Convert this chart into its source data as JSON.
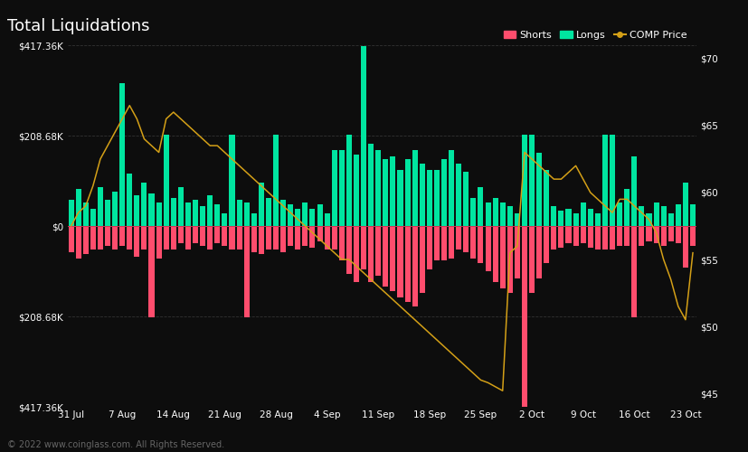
{
  "title": "Total Liquidations",
  "background_color": "#0d0d0d",
  "text_color": "#ffffff",
  "grid_color": "#333333",
  "shorts_color": "#ff4d6d",
  "longs_color": "#00e5a0",
  "price_color": "#d4a017",
  "footer": "© 2022 www.coinglass.com. All Rights Reserved.",
  "x_labels": [
    "31 Jul",
    "7 Aug",
    "14 Aug",
    "21 Aug",
    "28 Aug",
    "4 Sep",
    "11 Sep",
    "18 Sep",
    "25 Sep",
    "2 Oct",
    "9 Oct",
    "16 Oct",
    "23 Oct"
  ],
  "ylim_left": [
    -417360,
    417360
  ],
  "ylim_right": [
    44,
    71
  ],
  "yticks_left": [
    -417360,
    -208680,
    0,
    208680,
    417360
  ],
  "ytick_labels_left": [
    "$417.36K",
    "$208.68K",
    "$0",
    "$208.68K",
    "$417.36K"
  ],
  "yticks_right": [
    45,
    50,
    55,
    60,
    65,
    70
  ],
  "ytick_labels_right": [
    "$45",
    "$50",
    "$55",
    "$60",
    "$65",
    "$70"
  ],
  "n_bars": 86,
  "longs": [
    60000,
    85000,
    55000,
    40000,
    90000,
    60000,
    80000,
    330000,
    120000,
    70000,
    100000,
    75000,
    55000,
    210000,
    65000,
    90000,
    55000,
    60000,
    45000,
    70000,
    50000,
    30000,
    210000,
    60000,
    55000,
    30000,
    100000,
    65000,
    210000,
    60000,
    50000,
    40000,
    55000,
    40000,
    50000,
    30000,
    175000,
    175000,
    210000,
    165000,
    415000,
    190000,
    175000,
    155000,
    160000,
    130000,
    155000,
    175000,
    145000,
    130000,
    130000,
    155000,
    175000,
    145000,
    125000,
    65000,
    90000,
    55000,
    65000,
    55000,
    45000,
    30000,
    210000,
    210000,
    170000,
    130000,
    45000,
    35000,
    40000,
    30000,
    55000,
    40000,
    30000,
    210000,
    210000,
    55000,
    85000,
    160000,
    45000,
    30000,
    55000,
    45000,
    30000,
    50000,
    100000,
    50000
  ],
  "shorts": [
    -60000,
    -75000,
    -65000,
    -55000,
    -55000,
    -45000,
    -55000,
    -45000,
    -55000,
    -70000,
    -55000,
    -210000,
    -75000,
    -55000,
    -55000,
    -40000,
    -55000,
    -40000,
    -45000,
    -55000,
    -40000,
    -45000,
    -55000,
    -55000,
    -210000,
    -60000,
    -65000,
    -55000,
    -55000,
    -60000,
    -45000,
    -55000,
    -45000,
    -50000,
    -35000,
    -55000,
    -55000,
    -80000,
    -110000,
    -130000,
    -100000,
    -130000,
    -115000,
    -140000,
    -150000,
    -165000,
    -175000,
    -185000,
    -155000,
    -100000,
    -80000,
    -80000,
    -75000,
    -55000,
    -60000,
    -75000,
    -85000,
    -105000,
    -130000,
    -145000,
    -155000,
    -120000,
    -417360,
    -155000,
    -120000,
    -85000,
    -55000,
    -50000,
    -40000,
    -45000,
    -40000,
    -50000,
    -55000,
    -55000,
    -55000,
    -45000,
    -45000,
    -210000,
    -45000,
    -35000,
    -40000,
    -45000,
    -35000,
    -40000,
    -95000,
    -45000
  ],
  "price": [
    57.5,
    58.5,
    59.0,
    60.5,
    62.5,
    63.5,
    64.5,
    65.5,
    66.5,
    65.5,
    64.0,
    63.5,
    63.0,
    65.5,
    66.0,
    65.5,
    65.0,
    64.5,
    64.0,
    63.5,
    63.5,
    63.0,
    62.5,
    62.0,
    61.5,
    61.0,
    60.5,
    60.0,
    59.5,
    59.0,
    58.5,
    58.0,
    57.5,
    57.0,
    56.5,
    56.0,
    55.5,
    55.0,
    55.0,
    54.5,
    54.0,
    53.5,
    53.0,
    52.5,
    52.0,
    51.5,
    51.0,
    50.5,
    50.0,
    49.5,
    49.0,
    48.5,
    48.0,
    47.5,
    47.0,
    46.5,
    46.0,
    45.8,
    45.5,
    45.2,
    55.5,
    56.0,
    63.0,
    62.5,
    62.0,
    61.5,
    61.0,
    61.0,
    61.5,
    62.0,
    61.0,
    60.0,
    59.5,
    59.0,
    58.5,
    59.5,
    59.5,
    59.0,
    58.5,
    58.0,
    57.0,
    55.0,
    53.5,
    51.5,
    50.5,
    55.5
  ]
}
